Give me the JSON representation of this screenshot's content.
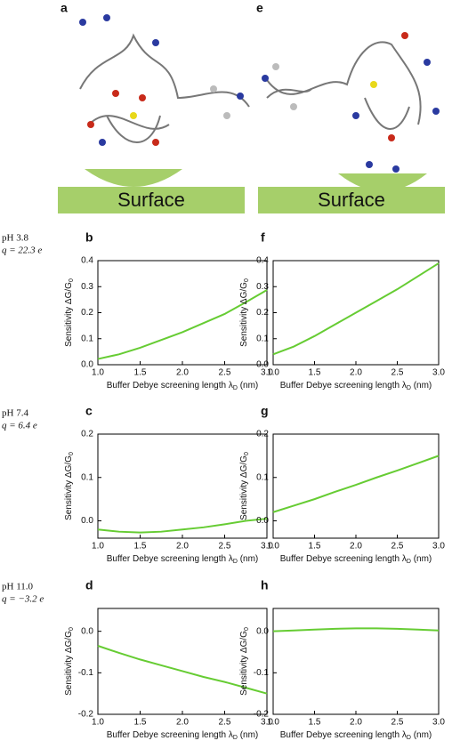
{
  "illustrations": [
    {
      "label": "a",
      "surface": "Surface"
    },
    {
      "label": "e",
      "surface": "Surface"
    }
  ],
  "rows": [
    {
      "ph": "pH 3.8",
      "charge": "q = 22.3 e"
    },
    {
      "ph": "pH 7.4",
      "charge": "q = 6.4 e"
    },
    {
      "ph": "pH 11.0",
      "charge": "q = −3.2 e"
    }
  ],
  "chart_data": [
    {
      "type": "line",
      "panel": "b",
      "xlabel": [
        "Buffer Debye screening length λ",
        "D",
        " (nm)"
      ],
      "ylabel": [
        "Sensitivity ΔG/G",
        "0"
      ],
      "x": [
        1,
        1.25,
        1.5,
        1.75,
        2,
        2.25,
        2.5,
        2.75,
        3
      ],
      "series": [
        {
          "color": "#66cc33",
          "values": [
            0.022,
            0.04,
            0.065,
            0.095,
            0.125,
            0.16,
            0.195,
            0.24,
            0.287
          ]
        }
      ],
      "xlim": [
        1,
        3
      ],
      "xticks": [
        {
          "value": 1,
          "label": "1.0"
        },
        1.5,
        {
          "value": 2,
          "label": "2.0"
        },
        2.5,
        {
          "value": 3,
          "label": "3.0"
        }
      ],
      "ylim": [
        0,
        0.4
      ],
      "yticks": [
        {
          "value": 0,
          "label": "0.0"
        },
        0.1,
        0.2,
        0.3,
        0.4
      ]
    },
    {
      "type": "line",
      "panel": "f",
      "xlabel": [
        "Buffer Debye screening length λ",
        "D",
        " (nm)"
      ],
      "ylabel": [
        "Sensitivity ΔG/G",
        "0"
      ],
      "x": [
        1,
        1.25,
        1.5,
        1.75,
        2,
        2.25,
        2.5,
        2.75,
        3
      ],
      "series": [
        {
          "color": "#66cc33",
          "values": [
            0.04,
            0.07,
            0.11,
            0.155,
            0.2,
            0.245,
            0.29,
            0.34,
            0.39
          ]
        }
      ],
      "xlim": [
        1,
        3
      ],
      "xticks": [
        {
          "value": 1,
          "label": "1.0"
        },
        1.5,
        {
          "value": 2,
          "label": "2.0"
        },
        2.5,
        {
          "value": 3,
          "label": "3.0"
        }
      ],
      "ylim": [
        0,
        0.4
      ],
      "yticks": [
        {
          "value": 0,
          "label": "0.0"
        },
        0.1,
        0.2,
        0.3,
        0.4
      ]
    },
    {
      "type": "line",
      "panel": "c",
      "xlabel": [
        "Buffer Debye screening length λ",
        "D",
        " (nm)"
      ],
      "ylabel": [
        "Sensitivity ΔG/G",
        "0"
      ],
      "x": [
        1,
        1.25,
        1.5,
        1.75,
        2,
        2.25,
        2.5,
        2.75,
        3
      ],
      "series": [
        {
          "color": "#66cc33",
          "values": [
            -0.02,
            -0.025,
            -0.027,
            -0.025,
            -0.02,
            -0.015,
            -0.008,
            0,
            0.005
          ]
        }
      ],
      "xlim": [
        1,
        3
      ],
      "xticks": [
        {
          "value": 1,
          "label": "1.0"
        },
        1.5,
        {
          "value": 2,
          "label": "2.0"
        },
        2.5,
        {
          "value": 3,
          "label": "3.0"
        }
      ],
      "ylim": [
        -0.04,
        0.2
      ],
      "yticks": [
        {
          "value": 0,
          "label": "0.0"
        },
        0.1,
        0.2
      ]
    },
    {
      "type": "line",
      "panel": "g",
      "xlabel": [
        "Buffer Debye screening length λ",
        "D",
        " (nm)"
      ],
      "ylabel": [
        "Sensitivity ΔG/G",
        "0"
      ],
      "x": [
        1,
        1.25,
        1.5,
        1.75,
        2,
        2.25,
        2.5,
        2.75,
        3
      ],
      "series": [
        {
          "color": "#66cc33",
          "values": [
            0.02,
            0.035,
            0.05,
            0.067,
            0.083,
            0.1,
            0.116,
            0.133,
            0.15
          ]
        }
      ],
      "xlim": [
        1,
        3
      ],
      "xticks": [
        {
          "value": 1,
          "label": "1.0"
        },
        1.5,
        {
          "value": 2,
          "label": "2.0"
        },
        2.5,
        {
          "value": 3,
          "label": "3.0"
        }
      ],
      "ylim": [
        -0.04,
        0.2
      ],
      "yticks": [
        {
          "value": 0,
          "label": "0.0"
        },
        0.1,
        0.2
      ]
    },
    {
      "type": "line",
      "panel": "d",
      "xlabel": [
        "Buffer Debye screening length λ",
        "D",
        " (nm)"
      ],
      "ylabel": [
        "Sensitivity ΔG/G",
        "0"
      ],
      "x": [
        1,
        1.25,
        1.5,
        1.75,
        2,
        2.25,
        2.5,
        2.75,
        3
      ],
      "series": [
        {
          "color": "#66cc33",
          "values": [
            -0.035,
            -0.052,
            -0.068,
            -0.082,
            -0.096,
            -0.11,
            -0.122,
            -0.136,
            -0.15
          ]
        }
      ],
      "xlim": [
        1,
        3
      ],
      "xticks": [
        {
          "value": 1,
          "label": "1.0"
        },
        1.5,
        {
          "value": 2,
          "label": "2.0"
        },
        2.5,
        {
          "value": 3,
          "label": "3.0"
        }
      ],
      "ylim": [
        -0.2,
        0.055
      ],
      "yticks": [
        {
          "value": -0.2,
          "label": "-0.2"
        },
        {
          "value": -0.1,
          "label": "-0.1"
        },
        {
          "value": 0,
          "label": "0.0"
        }
      ]
    },
    {
      "type": "line",
      "panel": "h",
      "xlabel": [
        "Buffer Debye screening length λ",
        "D",
        " (nm)"
      ],
      "ylabel": [
        "Sensitivity ΔG/G",
        "0"
      ],
      "x": [
        1,
        1.25,
        1.5,
        1.75,
        2,
        2.25,
        2.5,
        2.75,
        3
      ],
      "series": [
        {
          "color": "#66cc33",
          "values": [
            0,
            0.002,
            0.004,
            0.006,
            0.007,
            0.007,
            0.006,
            0.004,
            0.002
          ]
        }
      ],
      "xlim": [
        1,
        3
      ],
      "xticks": [
        {
          "value": 1,
          "label": "1.0"
        },
        1.5,
        {
          "value": 2,
          "label": "2.0"
        },
        2.5,
        {
          "value": 3,
          "label": "3.0"
        }
      ],
      "ylim": [
        -0.2,
        0.055
      ],
      "yticks": [
        {
          "value": -0.2,
          "label": "-0.2"
        },
        {
          "value": -0.1,
          "label": "-0.1"
        },
        {
          "value": 0,
          "label": "0.0"
        }
      ]
    }
  ]
}
